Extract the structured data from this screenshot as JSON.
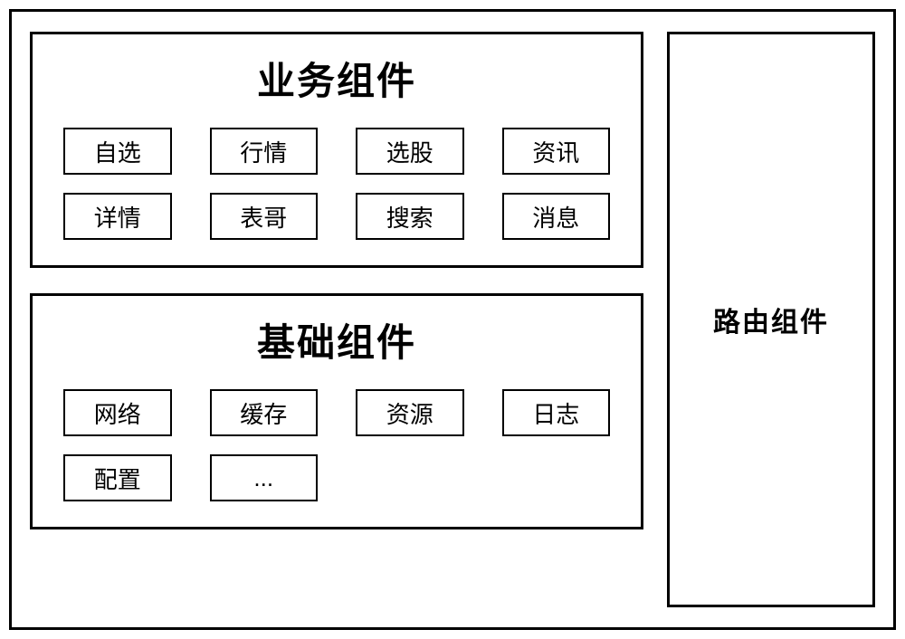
{
  "outer_border_color": "#000000",
  "outer_border_width": 3,
  "background_color": "#ffffff",
  "text_color": "#000000",
  "business": {
    "title": "业务组件",
    "title_fontsize": 42,
    "cell_fontsize": 26,
    "cell_border_width": 2,
    "items": [
      "自选",
      "行情",
      "选股",
      "资讯",
      "详情",
      "表哥",
      "搜索",
      "消息"
    ]
  },
  "foundation": {
    "title": "基础组件",
    "title_fontsize": 42,
    "cell_fontsize": 26,
    "cell_border_width": 2,
    "items": [
      "网络",
      "缓存",
      "资源",
      "日志",
      "配置",
      "..."
    ]
  },
  "router": {
    "label": "路由组件",
    "label_fontsize": 30
  }
}
